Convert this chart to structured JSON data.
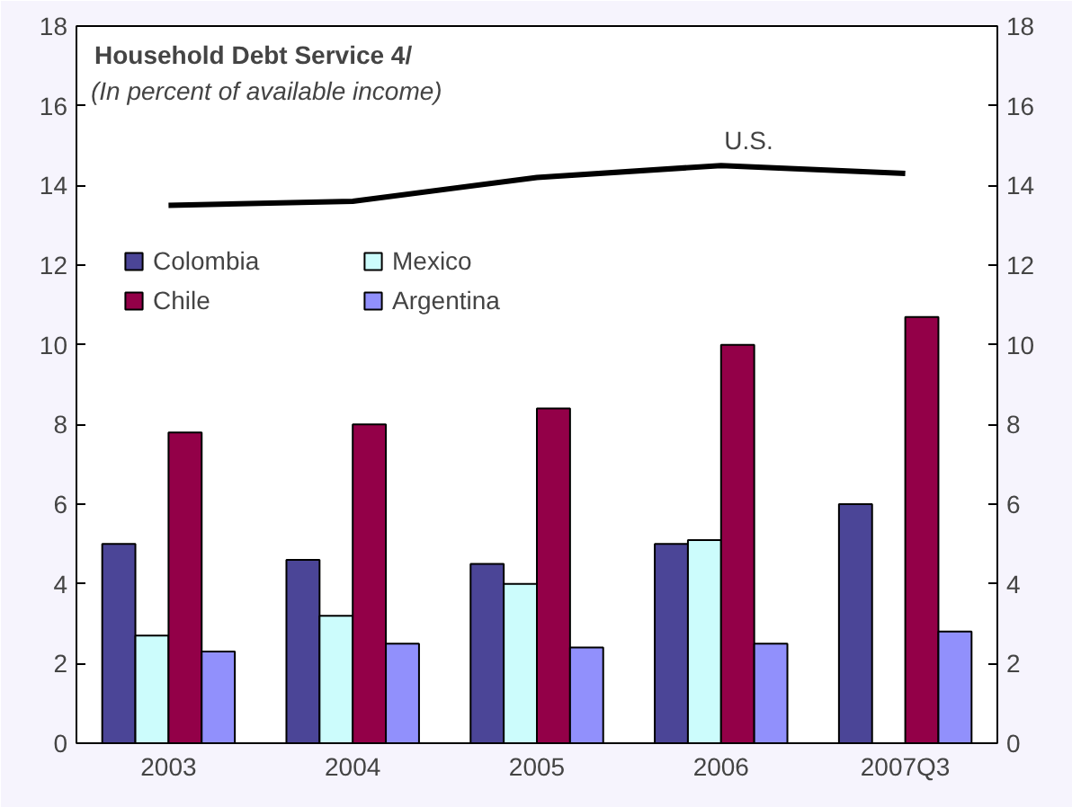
{
  "chart_data": {
    "type": "bar",
    "title": "Household Debt Service 4/",
    "subtitle": "(In percent of available income)",
    "categories": [
      "2003",
      "2004",
      "2005",
      "2006",
      "2007Q3"
    ],
    "series": [
      {
        "name": "Colombia",
        "color": "#4b4597",
        "values": [
          5.0,
          4.6,
          4.5,
          5.0,
          6.0
        ]
      },
      {
        "name": "Mexico",
        "color": "#ccfcfc",
        "values": [
          2.7,
          3.2,
          4.0,
          5.1,
          null
        ]
      },
      {
        "name": "Chile",
        "color": "#930048",
        "values": [
          7.8,
          8.0,
          8.4,
          10.0,
          10.7
        ]
      },
      {
        "name": "Argentina",
        "color": "#9190fc",
        "values": [
          2.3,
          2.5,
          2.4,
          2.5,
          2.8
        ]
      },
      {
        "name": "U.S.",
        "type": "line",
        "color": "#000000",
        "values": [
          13.5,
          13.6,
          14.2,
          14.5,
          14.3
        ]
      }
    ],
    "ylim": [
      0,
      18
    ],
    "yticks": [
      0,
      2,
      4,
      6,
      8,
      10,
      12,
      14,
      16,
      18
    ],
    "y2lim": [
      0,
      18
    ],
    "y2ticks": [
      0,
      2,
      4,
      6,
      8,
      10,
      12,
      14,
      16,
      18
    ],
    "grid": false,
    "legend": "top left"
  }
}
